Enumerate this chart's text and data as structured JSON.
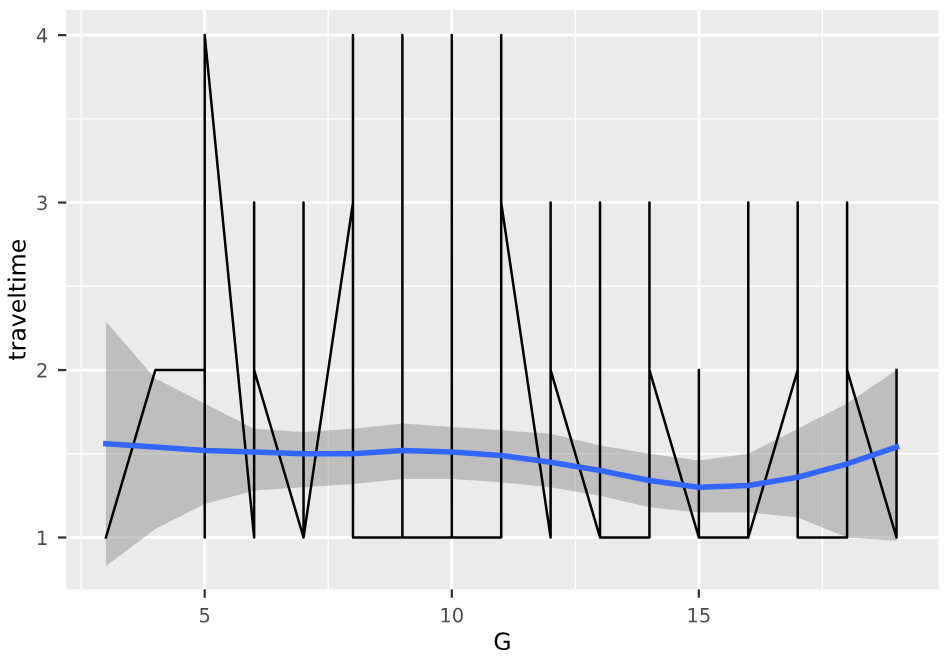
{
  "chart_data": {
    "type": "line",
    "xlabel": "G",
    "ylabel": "traveltime",
    "series": [
      {
        "color": "#000000",
        "x": [
          3,
          4,
          5,
          5,
          5,
          6,
          6,
          6,
          7,
          7,
          7,
          8,
          8,
          8,
          9,
          9,
          9,
          10,
          10,
          10,
          11,
          11,
          11,
          12,
          12,
          12,
          13,
          13,
          13,
          14,
          14,
          14,
          15,
          15,
          15,
          16,
          16,
          16,
          17,
          17,
          17,
          18,
          18,
          18,
          19,
          19
        ],
        "values": [
          1,
          2,
          2,
          1,
          4,
          1,
          3,
          2,
          1,
          3,
          1,
          3,
          4,
          1,
          1,
          4,
          1,
          1,
          4,
          1,
          1,
          4,
          3,
          1,
          3,
          2,
          1,
          3,
          1,
          1,
          3,
          2,
          1,
          2,
          1,
          1,
          3,
          1,
          2,
          3,
          1,
          1,
          3,
          2,
          1,
          2
        ]
      },
      {
        "color": "#3366ff",
        "x": [
          3,
          4,
          5,
          6,
          7,
          8,
          9,
          10,
          11,
          12,
          13,
          14,
          15,
          16,
          17,
          18,
          19
        ],
        "values": [
          1.56,
          1.54,
          1.52,
          1.51,
          1.5,
          1.5,
          1.52,
          1.51,
          1.49,
          1.45,
          1.4,
          1.34,
          1.3,
          1.31,
          1.36,
          1.44,
          1.54
        ],
        "lower": [
          0.83,
          1.05,
          1.2,
          1.28,
          1.3,
          1.32,
          1.35,
          1.35,
          1.33,
          1.3,
          1.25,
          1.18,
          1.15,
          1.15,
          1.12,
          1.0,
          0.98
        ],
        "upper": [
          2.29,
          1.95,
          1.8,
          1.65,
          1.63,
          1.65,
          1.68,
          1.66,
          1.64,
          1.62,
          1.55,
          1.5,
          1.46,
          1.5,
          1.65,
          1.8,
          2.0
        ]
      }
    ],
    "xlim": [
      2.2,
      19.85
    ],
    "ylim": [
      0.69,
      4.15
    ],
    "xticks": [
      5,
      10,
      15
    ],
    "yticks": [
      1,
      2,
      3,
      4
    ],
    "grid": true
  }
}
